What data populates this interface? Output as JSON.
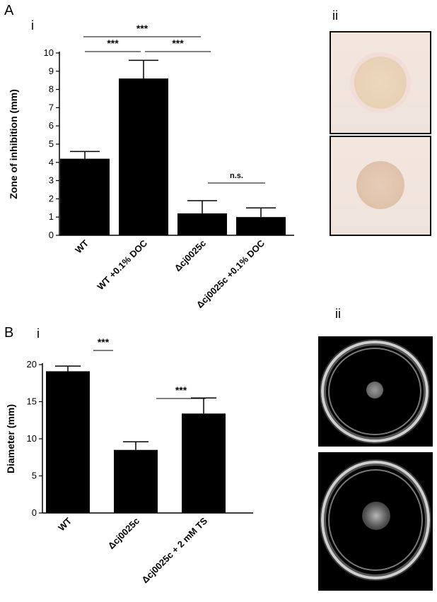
{
  "panels": {
    "a_letter": "A",
    "b_letter": "B",
    "a_i": "i",
    "a_ii": "ii",
    "b_i": "i",
    "b_ii": "ii"
  },
  "chart_data": [
    {
      "type": "bar",
      "title": "",
      "xlabel": "",
      "ylabel": "Zone of inhibition (mm)",
      "categories": [
        "WT",
        "WT +0.1% DOC",
        "Δcj0025c",
        "Δcj0025c +0.1% DOC"
      ],
      "italic_parts": [
        "",
        "",
        "cj0025c",
        "cj0025c"
      ],
      "values": [
        4.2,
        8.6,
        1.2,
        1.0
      ],
      "errors": [
        0.4,
        1.0,
        0.7,
        0.5
      ],
      "ylim": [
        0,
        10
      ],
      "yticks": [
        0,
        1,
        2,
        3,
        4,
        5,
        6,
        7,
        8,
        9,
        10
      ],
      "grid": false,
      "significance": [
        {
          "from": 0,
          "to": 2,
          "label": "***"
        },
        {
          "from": 0,
          "to": 1,
          "label": "***"
        },
        {
          "from": 1,
          "to": 2,
          "label": "***"
        },
        {
          "from": 2,
          "to": 3,
          "label": "n.s."
        }
      ]
    },
    {
      "type": "bar",
      "title": "",
      "xlabel": "",
      "ylabel": "Diameter (mm)",
      "categories": [
        "WT",
        "Δcj0025c",
        "Δcj0025c + 2 mM TS"
      ],
      "values": [
        19.1,
        8.5,
        13.4
      ],
      "errors": [
        0.7,
        1.1,
        2.1
      ],
      "ylim": [
        0,
        20
      ],
      "yticks": [
        0,
        5,
        10,
        15,
        20
      ],
      "grid": false,
      "significance": [
        {
          "from": 0,
          "to": 1,
          "label": "***"
        },
        {
          "from": 1,
          "to": 2,
          "label": "***"
        }
      ]
    }
  ]
}
